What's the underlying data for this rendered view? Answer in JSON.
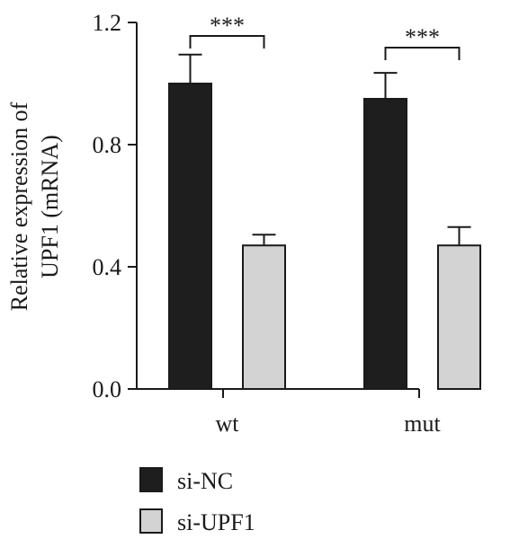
{
  "chart_data": {
    "type": "bar",
    "title": "",
    "xlabel": "",
    "ylabel_lines": [
      "Relative expression of",
      "UPF1 (mRNA)"
    ],
    "ylim": [
      0,
      1.2
    ],
    "yticks": [
      "0.0",
      "0.4",
      "0.8",
      "1.2"
    ],
    "ytick_values": [
      0,
      0.4,
      0.8,
      1.2
    ],
    "categories": [
      "wt",
      "mut"
    ],
    "series": [
      {
        "name": "si-NC",
        "values": [
          1.0,
          0.95
        ],
        "errors": [
          0.095,
          0.085
        ],
        "color": "#1e1e1e"
      },
      {
        "name": "si-UPF1",
        "values": [
          0.47,
          0.47
        ],
        "errors": [
          0.035,
          0.06
        ],
        "color": "#d3d3d3"
      }
    ],
    "significance": [
      {
        "category": "wt",
        "label": "***"
      },
      {
        "category": "mut",
        "label": "***"
      }
    ],
    "grid": false,
    "legend_position": "bottom-left"
  }
}
